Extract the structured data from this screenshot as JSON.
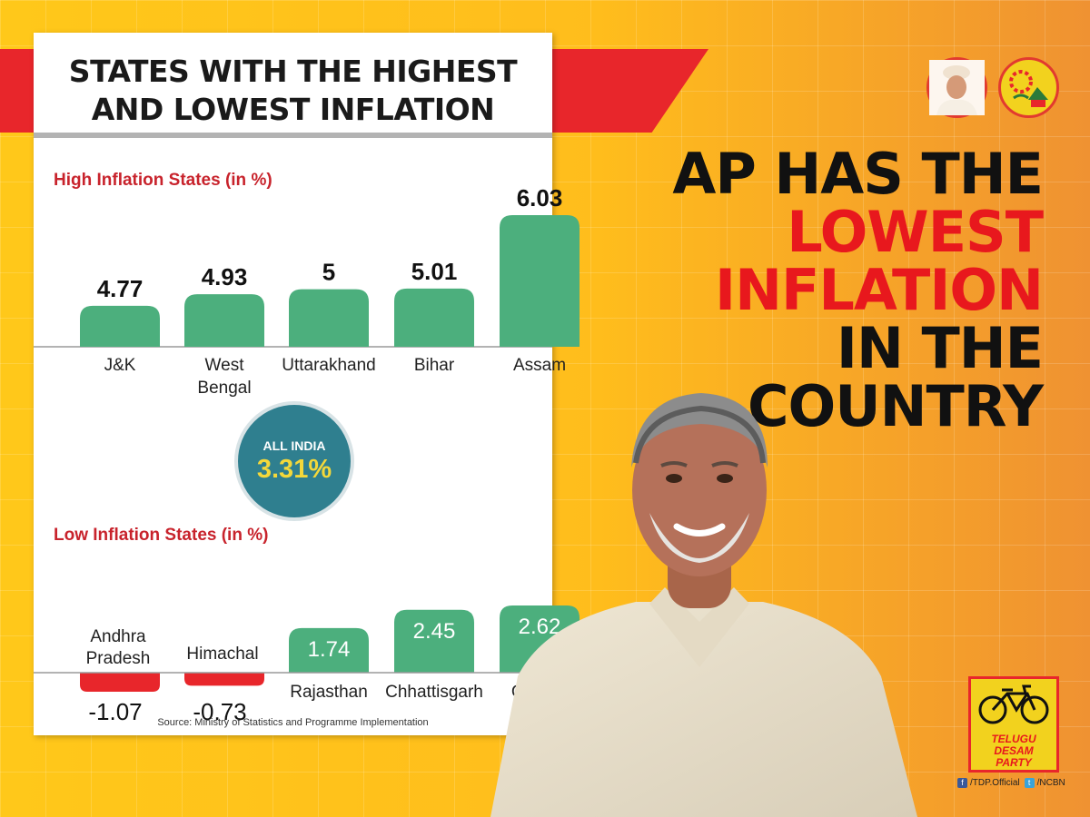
{
  "card": {
    "title_line1": "STATES WITH THE HIGHEST",
    "title_line2": "AND LOWEST INFLATION",
    "all_india_label": "ALL INDIA",
    "all_india_value": "3.31%",
    "source": "Source: Ministry of Statistics and Programme Implementation"
  },
  "headline": {
    "line1": "AP HAS THE",
    "line2": "LOWEST",
    "line3": "INFLATION",
    "line4": "IN THE",
    "line5": "COUNTRY"
  },
  "party": {
    "badge_line1": "TELUGU DESAM",
    "badge_line2": "PARTY",
    "facebook": "/TDP.Official",
    "twitter": "/NCBN"
  },
  "colors": {
    "bar_positive": "#4caf7d",
    "bar_negative": "#e8262b",
    "banner_red": "#e8262b",
    "circle": "#2f7f8f"
  },
  "chart_data": [
    {
      "type": "bar",
      "title": "High Inflation States (in %)",
      "categories": [
        [
          "J&K"
        ],
        [
          "West",
          "Bengal"
        ],
        [
          "Uttarakhand"
        ],
        [
          "Bihar"
        ],
        [
          "Assam"
        ]
      ],
      "values": [
        4.77,
        4.93,
        5,
        5.01,
        6.03
      ],
      "value_labels": [
        "4.77",
        "4.93",
        "5",
        "5.01",
        "6.03"
      ]
    },
    {
      "type": "bar",
      "title": "Low Inflation States (in %)",
      "categories": [
        [
          "Andhra",
          "Pradesh"
        ],
        [
          "Himachal"
        ],
        [
          "Rajasthan"
        ],
        [
          "Chhattisgarh"
        ],
        [
          "Gujarat"
        ]
      ],
      "values": [
        -1.07,
        -0.73,
        1.74,
        2.45,
        2.62
      ],
      "value_labels": [
        "-1.07",
        "-0.73",
        "1.74",
        "2.45",
        "2.62"
      ]
    }
  ]
}
